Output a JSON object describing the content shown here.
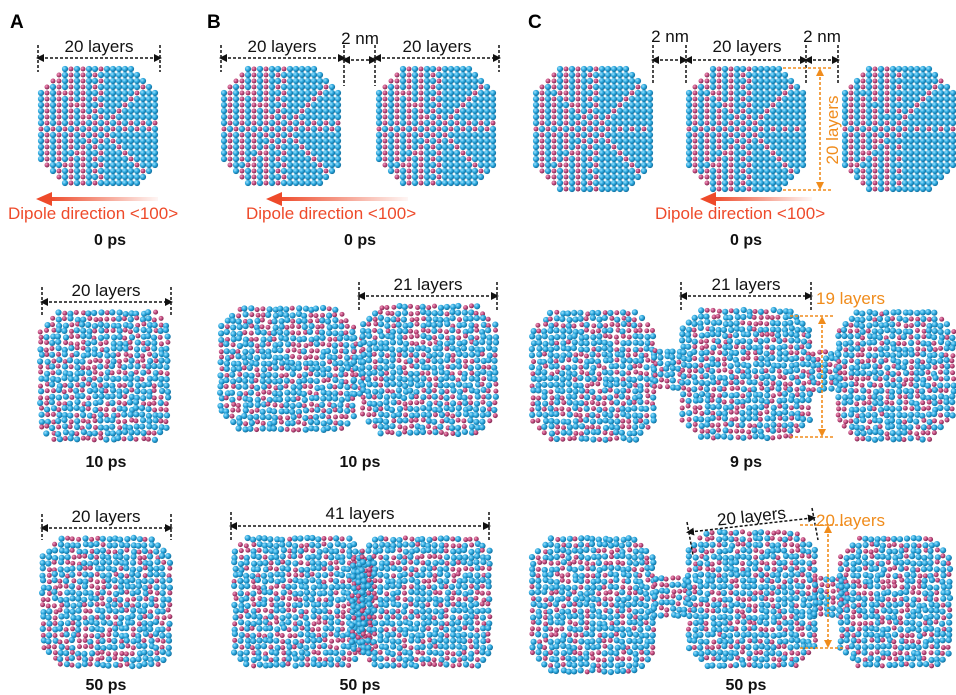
{
  "panels": [
    "A",
    "B",
    "C"
  ],
  "labels": {
    "layers20": "20 layers",
    "layers21": "21 layers",
    "layers41": "41 layers",
    "layers19": "19 layers",
    "gap": "2 nm",
    "dipole": "Dipole direction <100>"
  },
  "times": {
    "a0": "0 ps",
    "a1": "10 ps",
    "a2": "50 ps",
    "b0": "0 ps",
    "b1": "10 ps",
    "b2": "50 ps",
    "c0": "0 ps",
    "c1": "9 ps",
    "c2": "50 ps"
  },
  "colors": {
    "atom_blue": "#2aa7de",
    "atom_pink": "#c24a7d",
    "dipole_arrow": "#ee4a2a",
    "annotation_orange": "#f08c1c"
  }
}
